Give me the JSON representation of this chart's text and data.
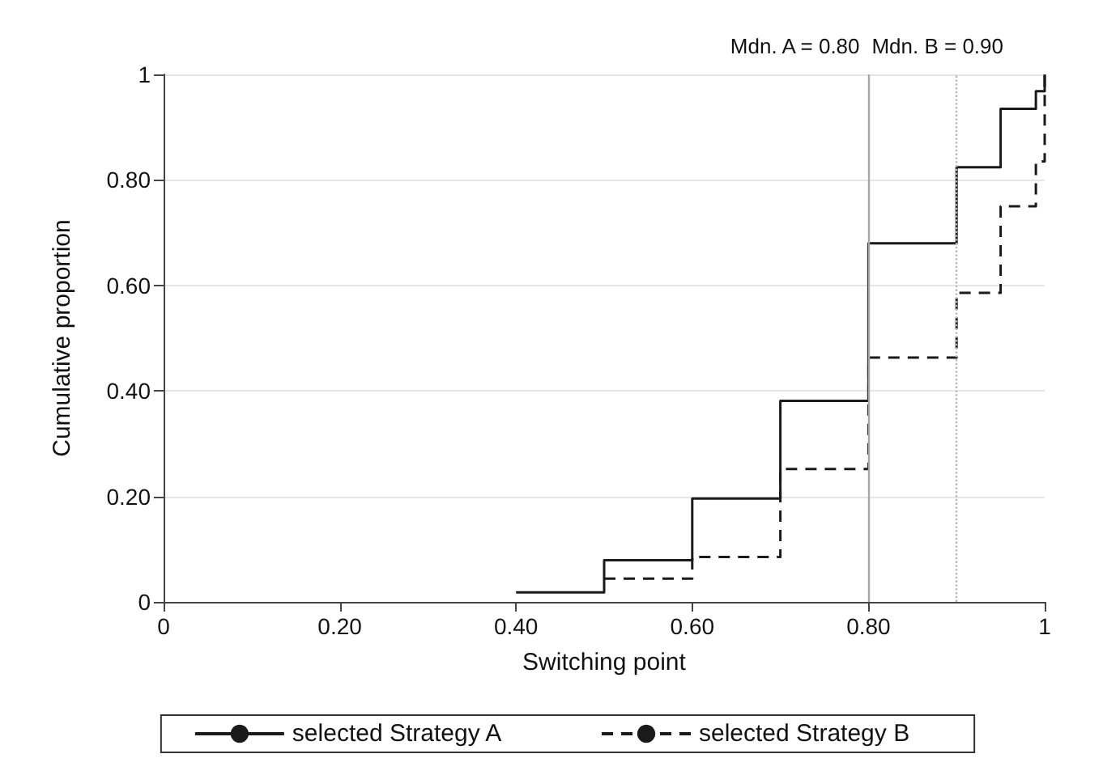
{
  "chart_data": {
    "type": "step",
    "xlabel": "Switching point",
    "ylabel": "Cumulative proportion",
    "xlim": [
      0,
      1
    ],
    "ylim": [
      0,
      1
    ],
    "xticks": [
      0,
      {
        "value": 0.2,
        "label": "0.20"
      },
      {
        "value": 0.4,
        "label": "0.40"
      },
      {
        "value": 0.6,
        "label": "0.60"
      },
      {
        "value": 0.8,
        "label": "0.80"
      },
      1
    ],
    "yticks": [
      0,
      {
        "value": 0.2,
        "label": "0.20"
      },
      {
        "value": 0.4,
        "label": "0.40"
      },
      {
        "value": 0.6,
        "label": "0.60"
      },
      {
        "value": 0.8,
        "label": "0.80"
      },
      1
    ],
    "grid": "y",
    "legend": "bottom",
    "marker": "none",
    "series": [
      {
        "name": "selected Strategy A",
        "color": "#1a1a1a",
        "line_style": "solid",
        "x": [
          0.4,
          0.5,
          0.6,
          0.7,
          0.8,
          0.9,
          0.95,
          0.99,
          1.0
        ],
        "values": [
          0.018,
          0.079,
          0.196,
          0.381,
          0.68,
          0.824,
          0.935,
          0.968,
          1.0
        ]
      },
      {
        "name": "selected Strategy B",
        "color": "#1a1a1a",
        "line_style": "dashed",
        "x": [
          0.5,
          0.6,
          0.7,
          0.8,
          0.9,
          0.95,
          0.99,
          1.0
        ],
        "values": [
          0.044,
          0.085,
          0.252,
          0.463,
          0.586,
          0.75,
          0.835,
          1.0
        ]
      }
    ],
    "ref_lines": [
      {
        "axis": "x",
        "value": 0.8,
        "label": "Mdn. A = 0.80",
        "color": "#a6a6a6",
        "line_style": "solid"
      },
      {
        "axis": "x",
        "value": 0.9,
        "label": "Mdn. B = 0.90",
        "color": "#b8b8b8",
        "line_style": "dotted"
      }
    ]
  }
}
